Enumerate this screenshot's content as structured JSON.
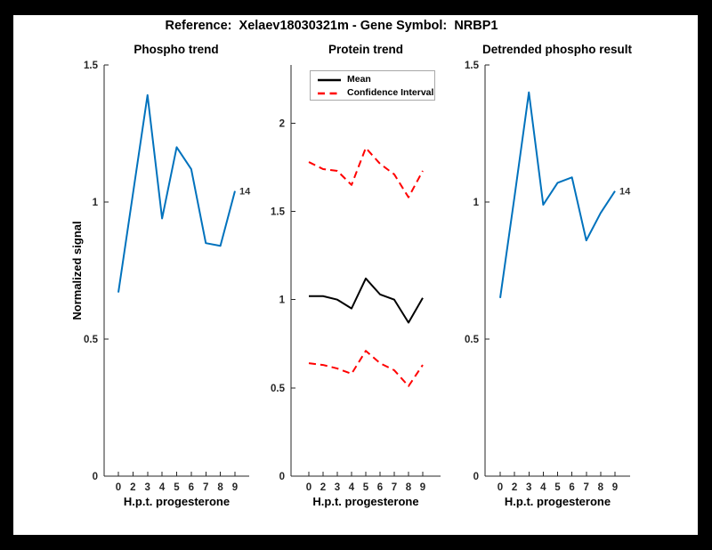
{
  "title": "Reference:  Xelaev18030321m - Gene Symbol:  NRBP1",
  "colors": {
    "blue_line": "#0072BD",
    "red_dashed": "#FF0000",
    "black_line": "#000000",
    "axis": "#262626"
  },
  "chart_data": [
    {
      "type": "line",
      "title": "Phospho trend",
      "xlabel": "H.p.t. progesterone",
      "ylabel": "Normalized signal",
      "x_tick_labels": [
        "0",
        "2",
        "3",
        "4",
        "5",
        "6",
        "7",
        "8",
        "9"
      ],
      "ylim": [
        0,
        1.5
      ],
      "yticks": [
        0,
        0.5,
        1,
        1.5
      ],
      "ytick_labels": [
        "0",
        "0.5",
        "1",
        "1.5"
      ],
      "grid": false,
      "series": [
        {
          "name": "phospho",
          "color": "#0072BD",
          "dash": false,
          "values": [
            0.67,
            1.03,
            1.39,
            0.94,
            1.2,
            1.12,
            0.85,
            0.84,
            1.04
          ]
        }
      ],
      "end_label": "14"
    },
    {
      "type": "line",
      "title": "Protein trend",
      "xlabel": "H.p.t. progesterone",
      "x_tick_labels": [
        "0",
        "2",
        "3",
        "4",
        "5",
        "6",
        "7",
        "8",
        "9"
      ],
      "ylim": [
        0,
        2.33
      ],
      "yticks": [
        0,
        0.5,
        1,
        1.5,
        2
      ],
      "ytick_labels": [
        "0",
        "0.5",
        "1",
        "1.5",
        "2"
      ],
      "grid": false,
      "legend_position": "top-left-inside",
      "legend": {
        "items": [
          {
            "label": "Mean",
            "color": "#000000",
            "dash": false
          },
          {
            "label": "Confidence Interval",
            "color": "#FF0000",
            "dash": true
          }
        ]
      },
      "series": [
        {
          "name": "upper-confidence",
          "color": "#FF0000",
          "dash": true,
          "values": [
            1.78,
            1.74,
            1.73,
            1.65,
            1.86,
            1.77,
            1.71,
            1.58,
            1.73
          ]
        },
        {
          "name": "mean",
          "color": "#000000",
          "dash": false,
          "values": [
            1.02,
            1.02,
            1.0,
            0.95,
            1.12,
            1.03,
            1.0,
            0.87,
            1.01
          ]
        },
        {
          "name": "lower-confidence",
          "color": "#FF0000",
          "dash": true,
          "values": [
            0.64,
            0.63,
            0.61,
            0.58,
            0.71,
            0.64,
            0.6,
            0.51,
            0.63
          ]
        }
      ]
    },
    {
      "type": "line",
      "title": "Detrended phospho result",
      "xlabel": "H.p.t. progesterone",
      "x_tick_labels": [
        "0",
        "2",
        "3",
        "4",
        "5",
        "6",
        "7",
        "8",
        "9"
      ],
      "ylim": [
        0,
        1.5
      ],
      "yticks": [
        0,
        0.5,
        1,
        1.5
      ],
      "ytick_labels": [
        "0",
        "0.5",
        "1",
        "1.5"
      ],
      "grid": false,
      "series": [
        {
          "name": "detrended-phospho",
          "color": "#0072BD",
          "dash": false,
          "values": [
            0.65,
            1.02,
            1.4,
            0.99,
            1.07,
            1.09,
            0.86,
            0.96,
            1.04
          ]
        }
      ],
      "end_label": "14"
    }
  ]
}
